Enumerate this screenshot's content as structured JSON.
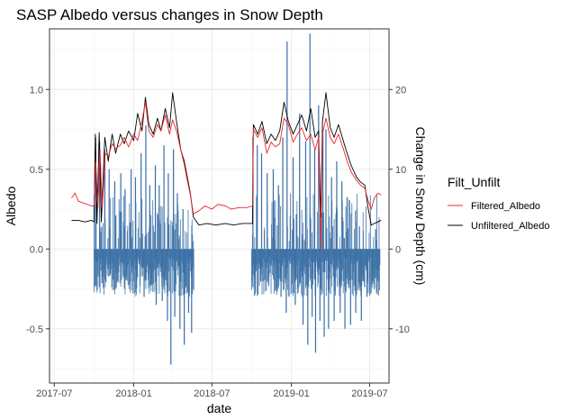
{
  "chart_data": {
    "type": "bar+line",
    "title": "SASP Albedo versus changes in Snow Depth",
    "xlabel": "date",
    "ylabel": "Albedo",
    "y2label": "Change in Snow Depth (cm)",
    "xlim": [
      "2017-06-20",
      "2019-08-15"
    ],
    "ylim": [
      -0.84,
      1.38
    ],
    "y2lim": [
      -15.2,
      28.4
    ],
    "y2_to_y_scale": 0.05,
    "x_ticks": [
      "2017-07",
      "2018-01",
      "2018-07",
      "2019-01",
      "2019-07"
    ],
    "x_tick_dates": [
      "2017-07-01",
      "2018-01-01",
      "2018-07-01",
      "2019-01-01",
      "2019-07-01"
    ],
    "y_ticks": [
      "-0.5",
      "0.0",
      "0.5",
      "1.0"
    ],
    "y_tick_values": [
      -0.5,
      0.0,
      0.5,
      1.0
    ],
    "y2_ticks": [
      "-10",
      "0",
      "10",
      "20"
    ],
    "y2_tick_values": [
      -10,
      0,
      10,
      20
    ],
    "grid": true,
    "legend": {
      "title": "Filt_Unfilt",
      "placement": "right",
      "entries": [
        "Filtered_Albedo",
        "Unfiltered_Albedo"
      ]
    },
    "colors": {
      "Filtered_Albedo": "#e8252c",
      "Unfiltered_Albedo": "#000000",
      "snow_depth_bars": "#3a6ea5"
    },
    "series": [
      {
        "name": "Filtered_Albedo",
        "kind": "line",
        "points": [
          [
            "2017-08-10",
            0.32
          ],
          [
            "2017-08-18",
            0.35
          ],
          [
            "2017-08-26",
            0.3
          ],
          [
            "2017-09-05",
            0.29
          ],
          [
            "2017-09-15",
            0.28
          ],
          [
            "2017-09-25",
            0.27
          ],
          [
            "2017-10-01",
            0.27
          ],
          [
            "2017-10-05",
            0.55
          ],
          [
            "2017-10-10",
            0.26
          ],
          [
            "2017-10-15",
            0.62
          ],
          [
            "2017-10-20",
            0.25
          ],
          [
            "2017-10-27",
            0.6
          ],
          [
            "2017-11-03",
            0.58
          ],
          [
            "2017-11-12",
            0.66
          ],
          [
            "2017-11-20",
            0.63
          ],
          [
            "2017-12-01",
            0.65
          ],
          [
            "2017-12-10",
            0.7
          ],
          [
            "2017-12-20",
            0.64
          ],
          [
            "2018-01-01",
            0.72
          ],
          [
            "2018-01-10",
            0.68
          ],
          [
            "2018-01-20",
            0.8
          ],
          [
            "2018-01-28",
            0.92
          ],
          [
            "2018-02-05",
            0.74
          ],
          [
            "2018-02-15",
            0.7
          ],
          [
            "2018-02-25",
            0.78
          ],
          [
            "2018-03-05",
            0.74
          ],
          [
            "2018-03-15",
            0.84
          ],
          [
            "2018-03-25",
            0.72
          ],
          [
            "2018-04-01",
            0.81
          ],
          [
            "2018-04-10",
            0.74
          ],
          [
            "2018-04-20",
            0.62
          ],
          [
            "2018-04-28",
            0.53
          ],
          [
            "2018-05-05",
            0.43
          ],
          [
            "2018-05-12",
            0.34
          ],
          [
            "2018-05-19",
            0.22
          ],
          [
            "2018-06-01",
            0.24
          ],
          [
            "2018-06-15",
            0.27
          ],
          [
            "2018-07-01",
            0.25
          ],
          [
            "2018-07-15",
            0.28
          ],
          [
            "2018-08-01",
            0.27
          ],
          [
            "2018-08-15",
            0.25
          ],
          [
            "2018-09-01",
            0.26
          ],
          [
            "2018-09-20",
            0.26
          ],
          [
            "2018-10-03",
            0.27
          ],
          [
            "2018-10-05",
            0.75
          ],
          [
            "2018-10-15",
            0.7
          ],
          [
            "2018-10-25",
            0.76
          ],
          [
            "2018-11-05",
            0.6
          ],
          [
            "2018-11-15",
            0.67
          ],
          [
            "2018-11-25",
            0.64
          ],
          [
            "2018-12-05",
            0.66
          ],
          [
            "2018-12-15",
            0.82
          ],
          [
            "2018-12-25",
            0.78
          ],
          [
            "2019-01-05",
            0.67
          ],
          [
            "2019-01-15",
            0.72
          ],
          [
            "2019-01-25",
            0.76
          ],
          [
            "2019-02-05",
            0.68
          ],
          [
            "2019-02-15",
            0.72
          ],
          [
            "2019-02-25",
            0.62
          ],
          [
            "2019-03-05",
            0.7
          ],
          [
            "2019-03-10",
            0.0
          ],
          [
            "2019-03-14",
            0.72
          ],
          [
            "2019-03-22",
            0.82
          ],
          [
            "2019-04-01",
            0.7
          ],
          [
            "2019-04-10",
            0.66
          ],
          [
            "2019-04-20",
            0.72
          ],
          [
            "2019-05-01",
            0.63
          ],
          [
            "2019-05-10",
            0.55
          ],
          [
            "2019-05-20",
            0.48
          ],
          [
            "2019-06-01",
            0.43
          ],
          [
            "2019-06-10",
            0.4
          ],
          [
            "2019-06-20",
            0.38
          ],
          [
            "2019-06-28",
            0.3
          ],
          [
            "2019-07-05",
            0.25
          ],
          [
            "2019-07-12",
            0.32
          ],
          [
            "2019-07-20",
            0.35
          ],
          [
            "2019-07-28",
            0.34
          ]
        ]
      },
      {
        "name": "Unfiltered_Albedo",
        "kind": "line",
        "points": [
          [
            "2017-08-10",
            0.18
          ],
          [
            "2017-08-25",
            0.18
          ],
          [
            "2017-09-10",
            0.17
          ],
          [
            "2017-09-25",
            0.18
          ],
          [
            "2017-10-01",
            0.17
          ],
          [
            "2017-10-04",
            0.72
          ],
          [
            "2017-10-08",
            0.16
          ],
          [
            "2017-10-13",
            0.73
          ],
          [
            "2017-10-18",
            0.17
          ],
          [
            "2017-10-26",
            0.7
          ],
          [
            "2017-11-03",
            0.55
          ],
          [
            "2017-11-12",
            0.72
          ],
          [
            "2017-11-20",
            0.6
          ],
          [
            "2017-12-01",
            0.72
          ],
          [
            "2017-12-10",
            0.66
          ],
          [
            "2017-12-20",
            0.74
          ],
          [
            "2018-01-01",
            0.68
          ],
          [
            "2018-01-10",
            0.85
          ],
          [
            "2018-01-20",
            0.74
          ],
          [
            "2018-01-28",
            0.95
          ],
          [
            "2018-02-05",
            0.78
          ],
          [
            "2018-02-15",
            0.72
          ],
          [
            "2018-02-25",
            0.82
          ],
          [
            "2018-03-05",
            0.74
          ],
          [
            "2018-03-15",
            0.88
          ],
          [
            "2018-03-25",
            0.76
          ],
          [
            "2018-04-01",
            0.98
          ],
          [
            "2018-04-10",
            0.8
          ],
          [
            "2018-04-20",
            0.62
          ],
          [
            "2018-04-28",
            0.55
          ],
          [
            "2018-05-05",
            0.45
          ],
          [
            "2018-05-12",
            0.35
          ],
          [
            "2018-05-19",
            0.2
          ],
          [
            "2018-06-01",
            0.15
          ],
          [
            "2018-06-20",
            0.16
          ],
          [
            "2018-07-10",
            0.15
          ],
          [
            "2018-08-01",
            0.16
          ],
          [
            "2018-08-20",
            0.15
          ],
          [
            "2018-09-10",
            0.16
          ],
          [
            "2018-10-03",
            0.16
          ],
          [
            "2018-10-05",
            0.78
          ],
          [
            "2018-10-15",
            0.72
          ],
          [
            "2018-10-25",
            0.8
          ],
          [
            "2018-11-05",
            0.66
          ],
          [
            "2018-11-15",
            0.72
          ],
          [
            "2018-11-25",
            0.68
          ],
          [
            "2018-12-05",
            0.74
          ],
          [
            "2018-12-15",
            0.92
          ],
          [
            "2018-12-25",
            0.8
          ],
          [
            "2019-01-05",
            0.72
          ],
          [
            "2019-01-15",
            0.78
          ],
          [
            "2019-01-25",
            0.84
          ],
          [
            "2019-02-05",
            0.74
          ],
          [
            "2019-02-15",
            0.88
          ],
          [
            "2019-02-25",
            0.7
          ],
          [
            "2019-03-05",
            0.74
          ],
          [
            "2019-03-10",
            0.2
          ],
          [
            "2019-03-14",
            0.8
          ],
          [
            "2019-03-22",
            0.98
          ],
          [
            "2019-04-01",
            0.76
          ],
          [
            "2019-04-10",
            0.7
          ],
          [
            "2019-04-20",
            0.78
          ],
          [
            "2019-05-01",
            0.68
          ],
          [
            "2019-05-10",
            0.6
          ],
          [
            "2019-05-20",
            0.52
          ],
          [
            "2019-06-01",
            0.45
          ],
          [
            "2019-06-10",
            0.42
          ],
          [
            "2019-06-20",
            0.4
          ],
          [
            "2019-06-28",
            0.25
          ],
          [
            "2019-07-05",
            0.15
          ],
          [
            "2019-07-12",
            0.16
          ],
          [
            "2019-07-20",
            0.17
          ],
          [
            "2019-07-28",
            0.18
          ]
        ]
      },
      {
        "name": "Change in Snow Depth (cm)",
        "kind": "bar",
        "axis": "y2",
        "ranges": [
          {
            "start": "2017-10-01",
            "end": "2018-05-20"
          },
          {
            "start": "2018-10-01",
            "end": "2019-07-25"
          }
        ],
        "points": [
          [
            "2017-10-05",
            14.0
          ],
          [
            "2017-10-14",
            13.5
          ],
          [
            "2017-10-26",
            12.5
          ],
          [
            "2017-11-05",
            10.0
          ],
          [
            "2017-11-18",
            8.5
          ],
          [
            "2017-12-02",
            9.5
          ],
          [
            "2017-12-12",
            7.5
          ],
          [
            "2017-12-26",
            10.0
          ],
          [
            "2018-01-05",
            9.0
          ],
          [
            "2018-01-18",
            12.0
          ],
          [
            "2018-01-29",
            15.5
          ],
          [
            "2018-02-07",
            8.0
          ],
          [
            "2018-02-20",
            10.5
          ],
          [
            "2018-03-01",
            8.0
          ],
          [
            "2018-03-12",
            13.0
          ],
          [
            "2018-03-22",
            9.5
          ],
          [
            "2018-04-03",
            12.5
          ],
          [
            "2018-04-12",
            7.0
          ],
          [
            "2018-04-25",
            5.0
          ],
          [
            "2018-10-04",
            14.0
          ],
          [
            "2018-10-14",
            13.0
          ],
          [
            "2018-10-24",
            12.0
          ],
          [
            "2018-11-06",
            9.5
          ],
          [
            "2018-11-20",
            10.0
          ],
          [
            "2018-12-02",
            8.0
          ],
          [
            "2018-12-12",
            14.0
          ],
          [
            "2018-12-22",
            26.0
          ],
          [
            "2019-01-05",
            11.5
          ],
          [
            "2019-01-20",
            17.0
          ],
          [
            "2019-02-03",
            13.5
          ],
          [
            "2019-02-13",
            27.0
          ],
          [
            "2019-02-24",
            12.5
          ],
          [
            "2019-03-05",
            18.0
          ],
          [
            "2019-03-15",
            14.5
          ],
          [
            "2019-03-22",
            15.0
          ],
          [
            "2019-04-04",
            9.0
          ],
          [
            "2019-04-16",
            11.0
          ],
          [
            "2019-04-28",
            8.5
          ],
          [
            "2019-05-10",
            6.5
          ],
          [
            "2019-06-01",
            3.5
          ],
          [
            "2019-07-15",
            2.5
          ],
          [
            "2017-10-06",
            -4.5
          ],
          [
            "2017-10-20",
            -3.5
          ],
          [
            "2017-11-08",
            -3.0
          ],
          [
            "2017-11-25",
            -4.0
          ],
          [
            "2017-12-15",
            -3.5
          ],
          [
            "2018-01-08",
            -4.0
          ],
          [
            "2018-01-25",
            -6.0
          ],
          [
            "2018-02-10",
            -4.5
          ],
          [
            "2018-02-22",
            -7.0
          ],
          [
            "2018-03-08",
            -6.5
          ],
          [
            "2018-03-20",
            -9.0
          ],
          [
            "2018-03-28",
            -14.5
          ],
          [
            "2018-04-06",
            -8.5
          ],
          [
            "2018-04-18",
            -10.0
          ],
          [
            "2018-04-28",
            -12.0
          ],
          [
            "2018-05-08",
            -8.0
          ],
          [
            "2018-05-15",
            -10.5
          ],
          [
            "2018-10-08",
            -3.0
          ],
          [
            "2018-10-22",
            -4.0
          ],
          [
            "2018-11-10",
            -3.5
          ],
          [
            "2018-11-28",
            -5.0
          ],
          [
            "2018-12-08",
            -6.0
          ],
          [
            "2018-12-20",
            -8.0
          ],
          [
            "2019-01-10",
            -7.0
          ],
          [
            "2019-01-28",
            -9.5
          ],
          [
            "2019-02-08",
            -12.0
          ],
          [
            "2019-02-18",
            -8.5
          ],
          [
            "2019-02-26",
            -13.0
          ],
          [
            "2019-03-08",
            -9.0
          ],
          [
            "2019-03-18",
            -11.0
          ],
          [
            "2019-03-28",
            -10.0
          ],
          [
            "2019-04-10",
            -9.0
          ],
          [
            "2019-04-24",
            -8.0
          ],
          [
            "2019-05-05",
            -10.0
          ],
          [
            "2019-05-18",
            -9.5
          ],
          [
            "2019-05-30",
            -8.0
          ],
          [
            "2019-06-12",
            -9.0
          ],
          [
            "2019-06-25",
            -6.0
          ],
          [
            "2019-07-08",
            -4.0
          ],
          [
            "2019-07-20",
            -2.5
          ]
        ]
      }
    ]
  }
}
